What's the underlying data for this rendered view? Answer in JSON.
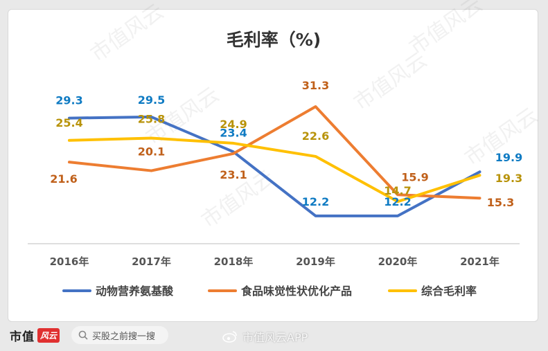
{
  "chart_data": {
    "type": "line",
    "title": "毛利率（%)",
    "categories": [
      "2016年",
      "2017年",
      "2018年",
      "2019年",
      "2020年",
      "2021年"
    ],
    "series": [
      {
        "name": "动物营养氨基酸",
        "color": "#4472c4",
        "label_color": "#0f7bc3",
        "values": [
          29.3,
          29.5,
          23.4,
          12.2,
          12.2,
          19.9
        ]
      },
      {
        "name": "食品味觉性状优化产品",
        "color": "#ed7d31",
        "label_color": "#c0601a",
        "values": [
          21.6,
          20.1,
          23.1,
          31.3,
          15.9,
          15.3
        ]
      },
      {
        "name": "综合毛利率",
        "color": "#ffc000",
        "label_color": "#b8930a",
        "values": [
          25.4,
          25.8,
          24.9,
          22.6,
          14.7,
          19.3
        ]
      }
    ],
    "ylim": [
      10,
      33
    ],
    "grid": false,
    "legend": "bottom"
  },
  "footer": {
    "brand": "市值",
    "brand_badge": "风云",
    "search_placeholder": "买股之前搜一搜",
    "weibo_handle": "市值风云APP"
  },
  "watermark": "市值风云",
  "icons": {
    "search": "search-icon",
    "weibo": "weibo-icon"
  }
}
